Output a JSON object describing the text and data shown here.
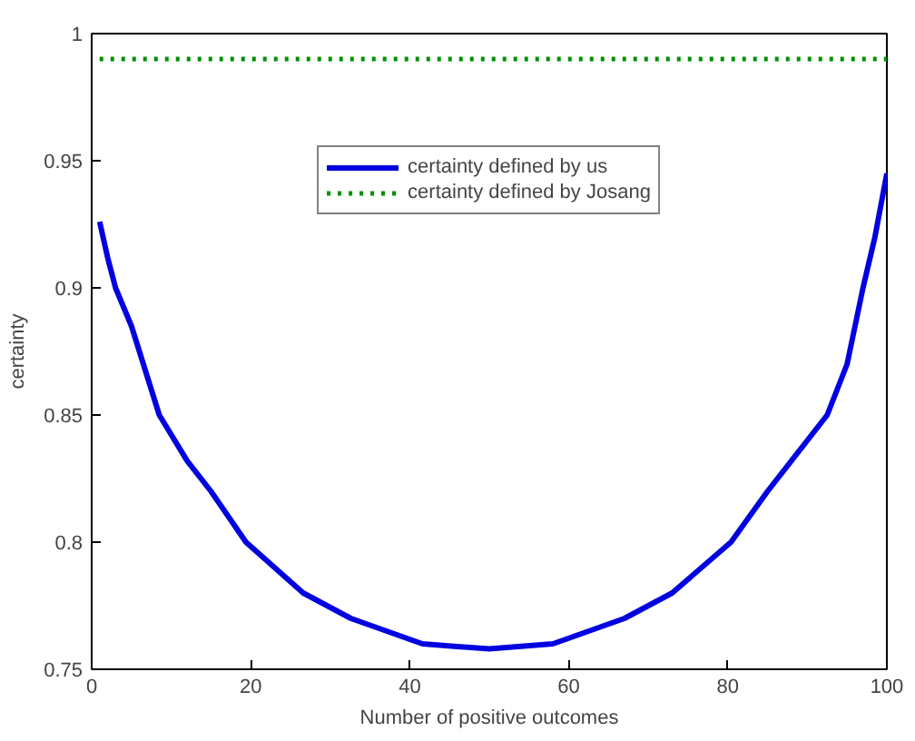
{
  "chart_data": {
    "type": "line",
    "xlabel": "Number of positive outcomes",
    "ylabel": "certainty",
    "xlim": [
      0,
      100
    ],
    "ylim": [
      0.75,
      1
    ],
    "xticks": [
      0,
      20,
      40,
      60,
      80,
      100
    ],
    "yticks": [
      0.75,
      0.8,
      0.85,
      0.9,
      0.95,
      1
    ],
    "grid": false,
    "legend": "top",
    "marker": "none",
    "series": [
      {
        "name": "certainty defined by us",
        "color": "#0000e0",
        "line_style": "solid",
        "x": [
          1,
          2,
          3,
          5,
          8.5,
          12,
          15,
          19.4,
          26.6,
          32.6,
          41.6,
          50,
          58,
          67,
          73,
          80.4,
          85,
          88,
          92.5,
          95,
          97,
          98.5,
          100
        ],
        "values": [
          0.926,
          0.912,
          0.9,
          0.885,
          0.85,
          0.832,
          0.82,
          0.8,
          0.78,
          0.77,
          0.76,
          0.758,
          0.76,
          0.77,
          0.78,
          0.8,
          0.82,
          0.832,
          0.85,
          0.87,
          0.9,
          0.92,
          0.945
        ]
      },
      {
        "name": "certainty defined by Josang",
        "color": "#009000",
        "line_style": "dotted",
        "x": [
          1,
          100
        ],
        "values": [
          0.99,
          0.99
        ]
      }
    ]
  }
}
